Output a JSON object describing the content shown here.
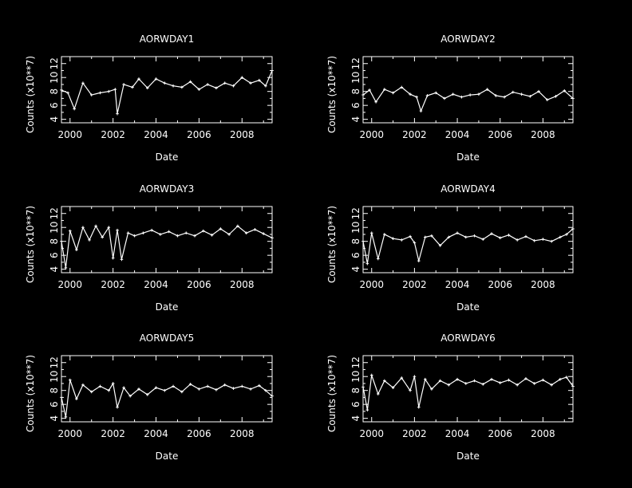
{
  "colors": {
    "background": "#000000",
    "foreground": "#ffffff"
  },
  "chart_data": [
    {
      "type": "line",
      "title": "AORWDAY1",
      "xlabel": "Date",
      "ylabel": "Counts (x10**7)",
      "xlim": [
        1999.6,
        2009.4
      ],
      "ylim": [
        3.5,
        13
      ],
      "xticks": [
        "2000",
        "2002",
        "2004",
        "2006",
        "2008"
      ],
      "yticks": [
        "4",
        "6",
        "8",
        "10",
        "12"
      ],
      "x": [
        1999.6,
        1999.9,
        2000.2,
        2000.6,
        2001.0,
        2001.4,
        2001.8,
        2002.1,
        2002.2,
        2002.5,
        2002.9,
        2003.2,
        2003.6,
        2004.0,
        2004.4,
        2004.8,
        2005.2,
        2005.6,
        2006.0,
        2006.4,
        2006.8,
        2007.2,
        2007.6,
        2008.0,
        2008.4,
        2008.8,
        2009.1,
        2009.4
      ],
      "values": [
        8.2,
        7.8,
        5.5,
        9.2,
        7.5,
        7.8,
        8.0,
        8.3,
        4.8,
        9.0,
        8.6,
        9.8,
        8.5,
        9.8,
        9.2,
        8.8,
        8.6,
        9.4,
        8.3,
        9.0,
        8.5,
        9.2,
        8.8,
        10.0,
        9.2,
        9.6,
        8.8,
        11.0
      ]
    },
    {
      "type": "line",
      "title": "AORWDAY2",
      "xlabel": "Date",
      "ylabel": "Counts (x10**7)",
      "xlim": [
        1999.6,
        2009.4
      ],
      "ylim": [
        3.5,
        13
      ],
      "xticks": [
        "2000",
        "2002",
        "2004",
        "2006",
        "2008"
      ],
      "yticks": [
        "4",
        "6",
        "8",
        "10",
        "12"
      ],
      "x": [
        1999.6,
        1999.9,
        2000.2,
        2000.6,
        2001.0,
        2001.4,
        2001.8,
        2002.1,
        2002.3,
        2002.6,
        2003.0,
        2003.4,
        2003.8,
        2004.2,
        2004.6,
        2005.0,
        2005.4,
        2005.8,
        2006.2,
        2006.6,
        2007.0,
        2007.4,
        2007.8,
        2008.2,
        2008.6,
        2009.0,
        2009.4
      ],
      "values": [
        7.5,
        8.2,
        6.5,
        8.3,
        7.8,
        8.6,
        7.6,
        7.2,
        5.2,
        7.4,
        7.8,
        7.0,
        7.6,
        7.2,
        7.5,
        7.6,
        8.3,
        7.4,
        7.2,
        7.9,
        7.6,
        7.3,
        8.0,
        6.8,
        7.3,
        8.1,
        7.0
      ]
    },
    {
      "type": "line",
      "title": "AORWDAY3",
      "xlabel": "Date",
      "ylabel": "Counts (x10**7)",
      "xlim": [
        1999.6,
        2009.4
      ],
      "ylim": [
        3.5,
        13
      ],
      "xticks": [
        "2000",
        "2002",
        "2004",
        "2006",
        "2008"
      ],
      "yticks": [
        "4",
        "6",
        "8",
        "10",
        "12"
      ],
      "x": [
        1999.6,
        1999.8,
        2000.0,
        2000.3,
        2000.6,
        2000.9,
        2001.2,
        2001.5,
        2001.8,
        2002.0,
        2002.2,
        2002.4,
        2002.7,
        2003.0,
        2003.4,
        2003.8,
        2004.2,
        2004.6,
        2005.0,
        2005.4,
        2005.8,
        2006.2,
        2006.6,
        2007.0,
        2007.4,
        2007.8,
        2008.2,
        2008.6,
        2009.0,
        2009.4
      ],
      "values": [
        8.0,
        4.2,
        9.5,
        6.8,
        10.0,
        8.2,
        10.2,
        8.6,
        10.0,
        5.6,
        9.6,
        5.4,
        9.2,
        8.8,
        9.2,
        9.6,
        9.0,
        9.4,
        8.8,
        9.2,
        8.8,
        9.5,
        8.9,
        9.8,
        9.0,
        10.2,
        9.2,
        9.7,
        9.1,
        8.5
      ]
    },
    {
      "type": "line",
      "title": "AORWDAY4",
      "xlabel": "Date",
      "ylabel": "Counts (x10**7)",
      "xlim": [
        1999.6,
        2009.4
      ],
      "ylim": [
        3.5,
        13
      ],
      "xticks": [
        "2000",
        "2002",
        "2004",
        "2006",
        "2008"
      ],
      "yticks": [
        "4",
        "6",
        "8",
        "10",
        "12"
      ],
      "x": [
        1999.6,
        1999.8,
        2000.0,
        2000.3,
        2000.6,
        2001.0,
        2001.4,
        2001.8,
        2002.0,
        2002.2,
        2002.5,
        2002.8,
        2003.2,
        2003.6,
        2004.0,
        2004.4,
        2004.8,
        2005.2,
        2005.6,
        2006.0,
        2006.4,
        2006.8,
        2007.2,
        2007.6,
        2008.0,
        2008.4,
        2008.8,
        2009.1,
        2009.4
      ],
      "values": [
        8.0,
        4.8,
        9.2,
        5.5,
        9.0,
        8.4,
        8.2,
        8.7,
        7.8,
        5.2,
        8.6,
        8.8,
        7.4,
        8.6,
        9.2,
        8.6,
        8.8,
        8.3,
        9.1,
        8.5,
        8.9,
        8.2,
        8.7,
        8.1,
        8.3,
        8.0,
        8.6,
        9.0,
        9.8
      ]
    },
    {
      "type": "line",
      "title": "AORWDAY5",
      "xlabel": "Date",
      "ylabel": "Counts (x10**7)",
      "xlim": [
        1999.6,
        2009.4
      ],
      "ylim": [
        3.5,
        13
      ],
      "xticks": [
        "2000",
        "2002",
        "2004",
        "2006",
        "2008"
      ],
      "yticks": [
        "4",
        "6",
        "8",
        "10",
        "12"
      ],
      "x": [
        1999.6,
        1999.8,
        2000.0,
        2000.3,
        2000.6,
        2001.0,
        2001.4,
        2001.8,
        2002.0,
        2002.2,
        2002.5,
        2002.8,
        2003.2,
        2003.6,
        2004.0,
        2004.4,
        2004.8,
        2005.2,
        2005.6,
        2006.0,
        2006.4,
        2006.8,
        2007.2,
        2007.6,
        2008.0,
        2008.4,
        2008.8,
        2009.1,
        2009.4
      ],
      "values": [
        7.0,
        4.2,
        9.5,
        6.8,
        8.8,
        7.8,
        8.6,
        8.0,
        9.0,
        5.6,
        8.4,
        7.2,
        8.2,
        7.4,
        8.4,
        8.0,
        8.6,
        7.8,
        8.9,
        8.2,
        8.6,
        8.1,
        8.8,
        8.3,
        8.6,
        8.2,
        8.7,
        8.0,
        7.2
      ]
    },
    {
      "type": "line",
      "title": "AORWDAY6",
      "xlabel": "Date",
      "ylabel": "Counts (x10**7)",
      "xlim": [
        1999.6,
        2009.4
      ],
      "ylim": [
        3.5,
        13
      ],
      "xticks": [
        "2000",
        "2002",
        "2004",
        "2006",
        "2008"
      ],
      "yticks": [
        "4",
        "6",
        "8",
        "10",
        "12"
      ],
      "x": [
        1999.6,
        1999.8,
        2000.0,
        2000.3,
        2000.6,
        2001.0,
        2001.4,
        2001.8,
        2002.0,
        2002.2,
        2002.5,
        2002.8,
        2003.2,
        2003.6,
        2004.0,
        2004.4,
        2004.8,
        2005.2,
        2005.6,
        2006.0,
        2006.4,
        2006.8,
        2007.2,
        2007.6,
        2008.0,
        2008.4,
        2008.8,
        2009.1,
        2009.4
      ],
      "values": [
        8.5,
        5.2,
        10.2,
        7.5,
        9.4,
        8.4,
        9.8,
        8.0,
        10.0,
        5.6,
        9.6,
        8.2,
        9.4,
        8.8,
        9.6,
        9.0,
        9.4,
        8.9,
        9.6,
        9.1,
        9.5,
        8.8,
        9.7,
        9.0,
        9.5,
        8.8,
        9.6,
        9.9,
        8.6
      ]
    }
  ]
}
